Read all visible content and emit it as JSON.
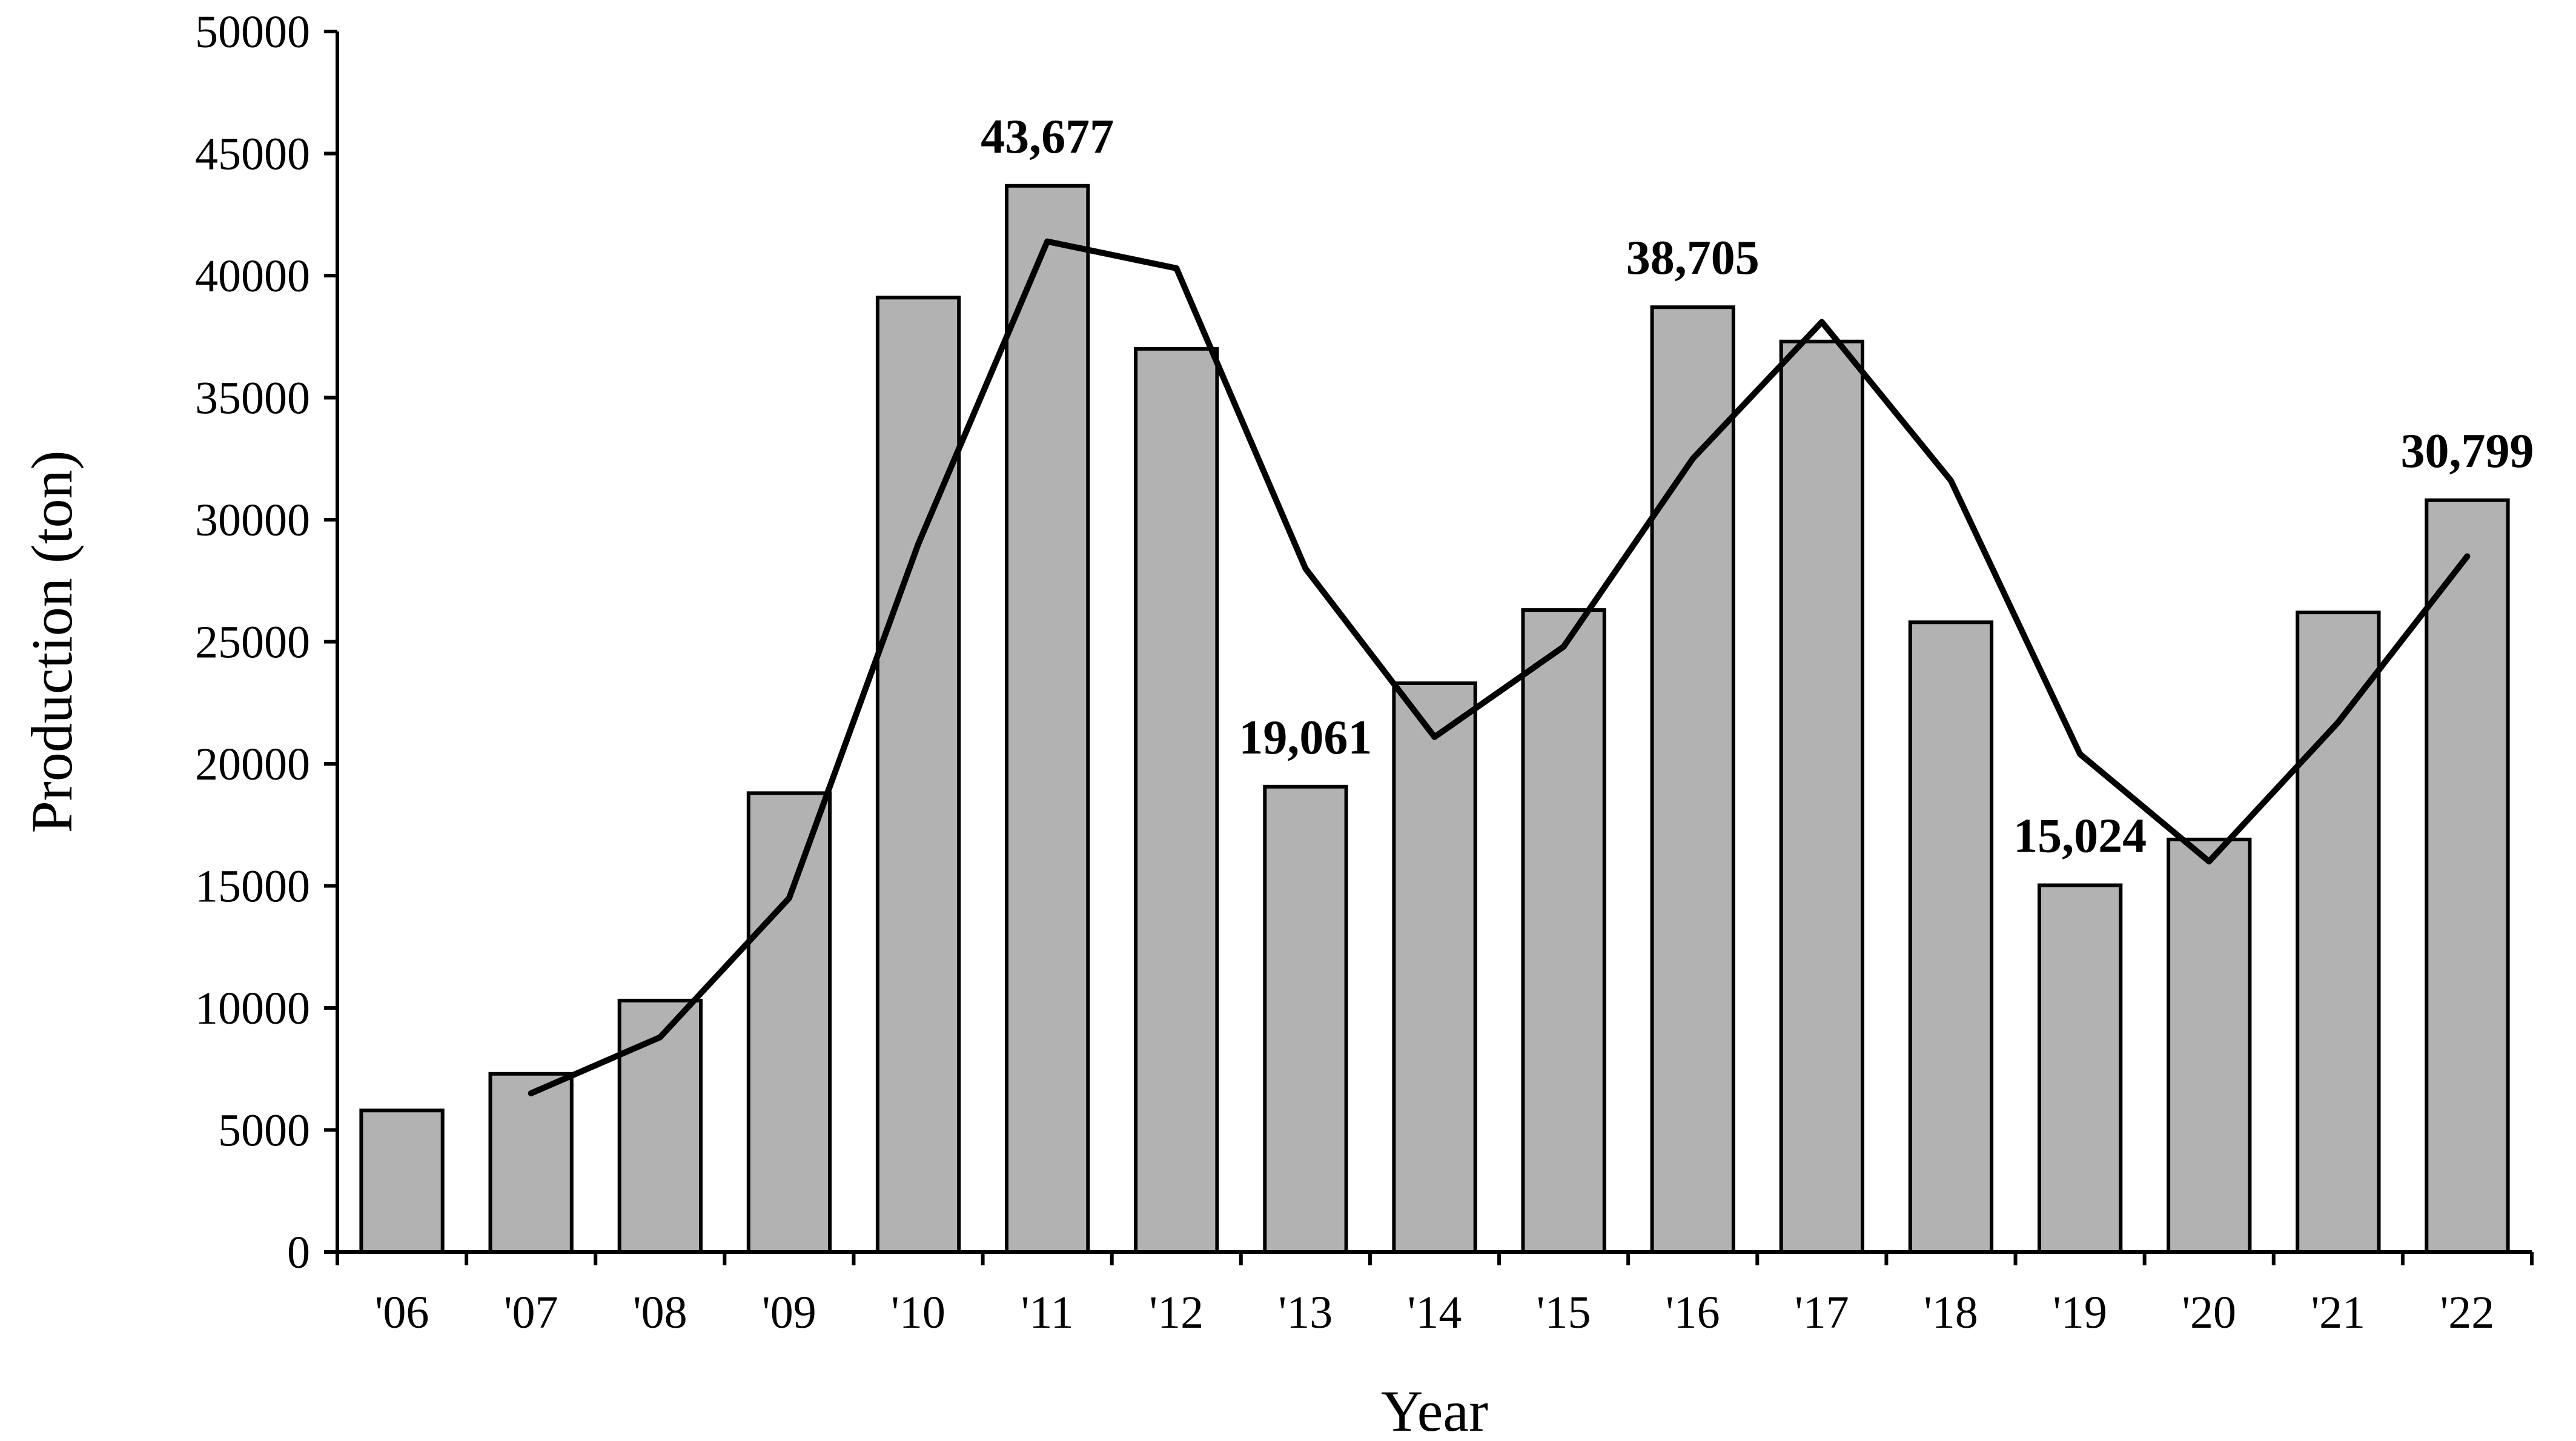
{
  "chart_data": {
    "type": "bar",
    "xlabel": "Year",
    "ylabel": "Production (ton)",
    "ylim": [
      0,
      50000
    ],
    "yticks": [
      0,
      5000,
      10000,
      15000,
      20000,
      25000,
      30000,
      35000,
      40000,
      45000,
      50000
    ],
    "categories": [
      "'06",
      "'07",
      "'08",
      "'09",
      "'10",
      "'11",
      "'12",
      "'13",
      "'14",
      "'15",
      "'16",
      "'17",
      "'18",
      "'19",
      "'20",
      "'21",
      "'22"
    ],
    "values": [
      5800,
      7300,
      10300,
      18800,
      39100,
      43677,
      37000,
      19061,
      23300,
      26300,
      38705,
      37300,
      25800,
      15024,
      16900,
      26200,
      30799
    ],
    "trend_line": {
      "categories": [
        "'07",
        "'08",
        "'09",
        "'10",
        "'11",
        "'12",
        "'13",
        "'14",
        "'15",
        "'16",
        "'17",
        "'18",
        "'19",
        "'20",
        "'21",
        "'22"
      ],
      "values": [
        6500,
        8800,
        14500,
        29000,
        41400,
        40300,
        28000,
        21100,
        24800,
        32500,
        38100,
        31600,
        20400,
        16000,
        21700,
        28500
      ]
    },
    "data_labels": [
      {
        "category": "'11",
        "text": "43,677"
      },
      {
        "category": "'13",
        "text": "19,061"
      },
      {
        "category": "'16",
        "text": "38,705"
      },
      {
        "category": "'19",
        "text": "15,024"
      },
      {
        "category": "'22",
        "text": "30,799"
      }
    ],
    "grid": false,
    "legend": "none"
  }
}
